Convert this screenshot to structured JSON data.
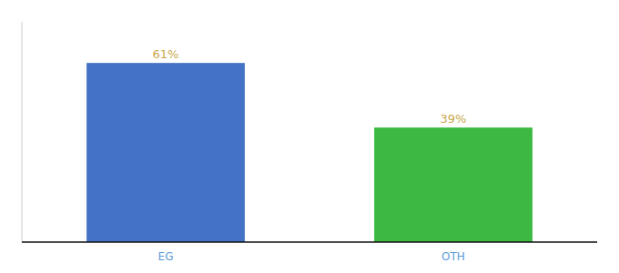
{
  "chart_data": {
    "type": "bar",
    "categories": [
      "EG",
      "OTH"
    ],
    "values": [
      61,
      39
    ],
    "value_labels": [
      "61%",
      "39%"
    ],
    "colors": [
      "#4472c4",
      "#3cb843"
    ],
    "ylim": [
      0,
      75
    ],
    "data_labels": true,
    "tick_labels": "x"
  }
}
